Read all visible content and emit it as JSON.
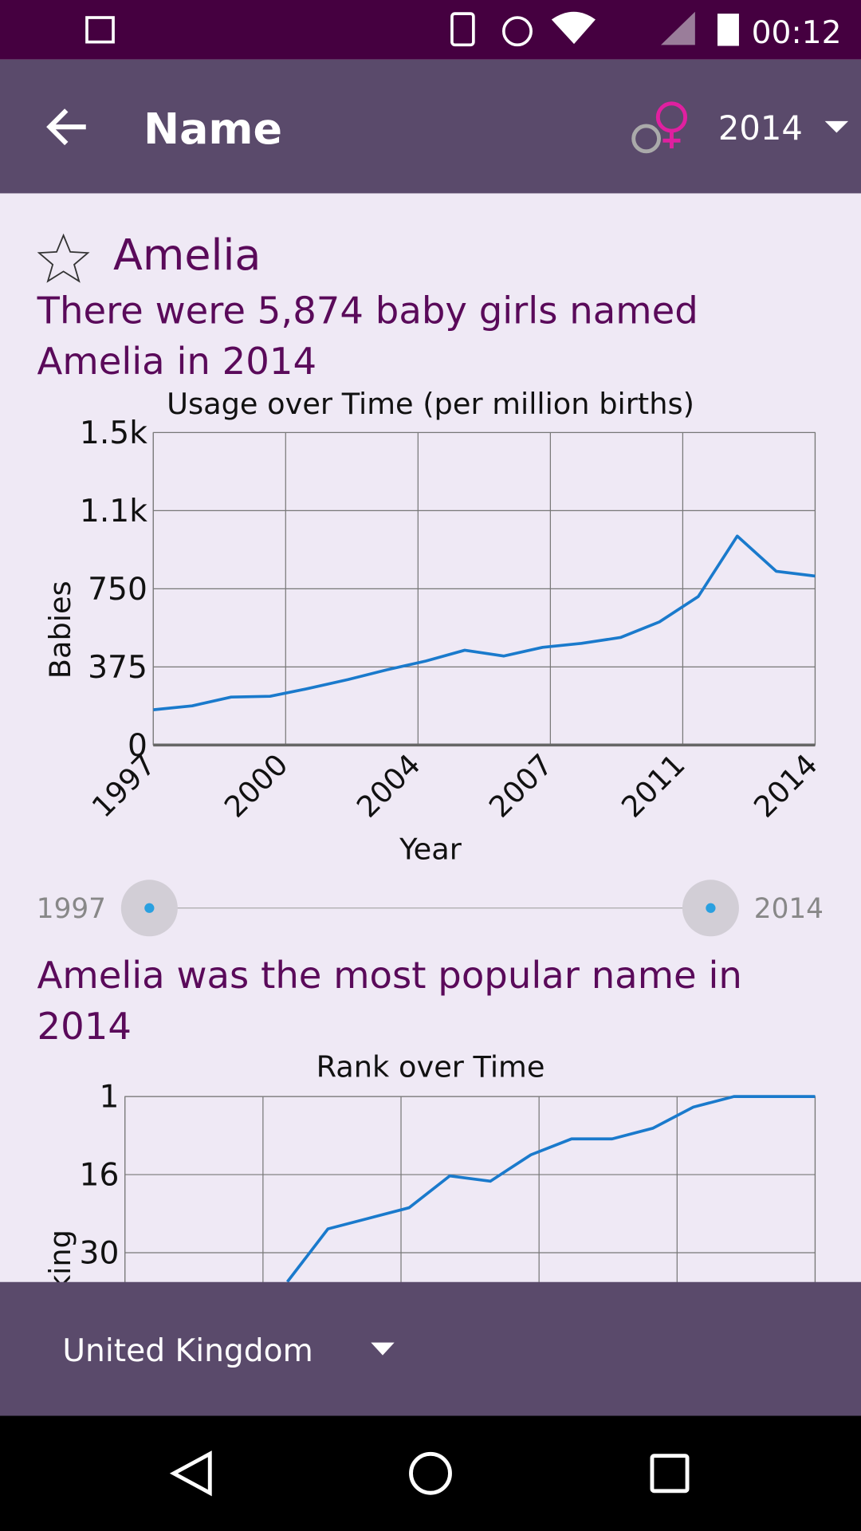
{
  "status_bar": {
    "time": "00:12"
  },
  "app_bar": {
    "title": "Name",
    "year": "2014"
  },
  "name": "Amelia",
  "summary": "There were 5,874 baby girls named Amelia in 2014",
  "slider": {
    "start": "1997",
    "end": "2014"
  },
  "rank_summary": "Amelia was the most popular name in 2014",
  "bottom_bar": {
    "country": "United Kingdom"
  },
  "chart_data": [
    {
      "type": "line",
      "title": "Usage over Time (per million births)",
      "x_label": "Year",
      "y_label": "Babies",
      "x": [
        1997,
        1998,
        1999,
        2000,
        2001,
        2002,
        2003,
        2004,
        2005,
        2006,
        2007,
        2008,
        2009,
        2010,
        2011,
        2012,
        2013,
        2014
      ],
      "series": [
        {
          "color": "#1a7acc",
          "values": [
            169,
            188,
            230,
            234,
            272,
            314,
            361,
            403,
            455,
            427,
            469,
            488,
            516,
            591,
            713,
            1003,
            834,
            811
          ]
        }
      ],
      "xlim": [
        1997,
        2014
      ],
      "xticks": [
        1997,
        {
          "value": 2000.4,
          "label": "2000"
        },
        {
          "value": 2003.8,
          "label": "2004"
        },
        {
          "value": 2007.2,
          "label": "2007"
        },
        {
          "value": 2010.6,
          "label": "2011"
        },
        2014
      ],
      "ylim": [
        0,
        1500
      ],
      "yticks": [
        0,
        375,
        750,
        {
          "value": 1125,
          "label": "1.1k"
        },
        {
          "value": 1500,
          "label": "1.5k"
        }
      ],
      "grid": true
    },
    {
      "type": "line",
      "title": "Rank over Time",
      "y_label": "Ranking",
      "x": [
        2001,
        2002,
        2003,
        2004,
        2005,
        2006,
        2007,
        2008,
        2009,
        2010,
        2011,
        2012,
        2013,
        2014
      ],
      "series": [
        {
          "color": "#1a7acc",
          "values": [
            36,
            26,
            24,
            22,
            16,
            17,
            12,
            9,
            9,
            7,
            3,
            1,
            1,
            1
          ]
        }
      ],
      "xlim": [
        1997,
        2014
      ],
      "ylim": [
        60,
        1
      ],
      "yticks": [
        1,
        {
          "value": 15.75,
          "label": "16"
        },
        {
          "value": 30.5,
          "label": "30"
        }
      ],
      "grid": true
    }
  ]
}
